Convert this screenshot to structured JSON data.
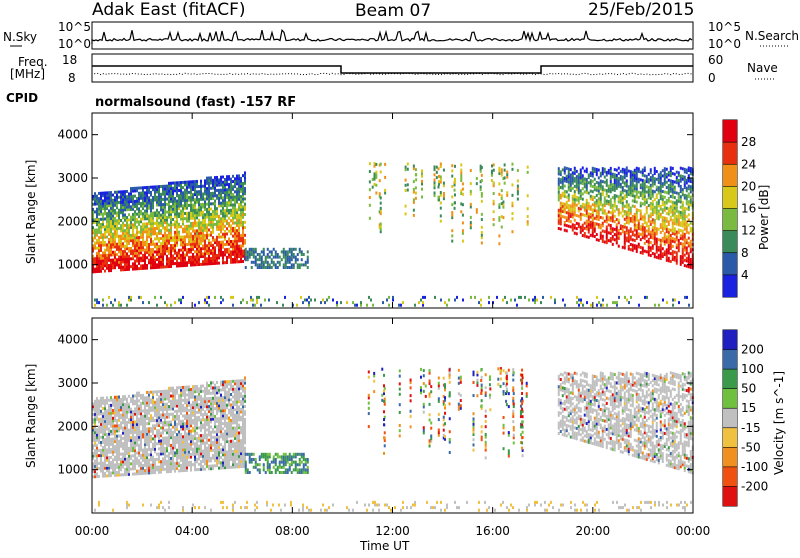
{
  "header": {
    "title": "Adak East (fitACF)",
    "beam": "Beam 07",
    "date": "25/Feb/2015"
  },
  "sky_panel": {
    "left_label": "N.Sky",
    "right_label": "N.Search",
    "left_ticks": [
      "10^5",
      "10^0"
    ],
    "right_ticks": [
      "10^5",
      "10^0"
    ]
  },
  "freq_panel": {
    "left_label_top": "Freq.",
    "left_label_bottom": "[MHz]",
    "left_ticks": [
      "18",
      "8"
    ],
    "right_label": "Nave",
    "right_ticks": [
      "60",
      "0"
    ]
  },
  "cpid": {
    "label": "CPID",
    "text": "normalsound (fast) -157 RF"
  },
  "chart_data": [
    {
      "type": "heatmap",
      "name": "power",
      "ylabel": "Slant Range [km]",
      "yticks": [
        1000,
        2000,
        3000,
        4000
      ],
      "colorbar_label": "Power [dB]",
      "colorbar_ticks": [
        4,
        8,
        12,
        16,
        20,
        24,
        28
      ],
      "colorbar_colors": [
        "#1a22e0",
        "#2a5aa8",
        "#3a8a5a",
        "#7aba40",
        "#d8c81a",
        "#f09018",
        "#e83010",
        "#e00010"
      ]
    },
    {
      "type": "heatmap",
      "name": "velocity",
      "ylabel": "Slant Range [km]",
      "yticks": [
        1000,
        2000,
        3000,
        4000
      ],
      "colorbar_label": "Velocity [m s^-1]",
      "colorbar_ticks": [
        -200,
        -100,
        -50,
        -15,
        15,
        50,
        100,
        200
      ],
      "colorbar_colors": [
        "#e01010",
        "#f05010",
        "#f09020",
        "#f0c040",
        "#c0c0c0",
        "#70c040",
        "#3a9a4a",
        "#3a6aa8",
        "#2020c0"
      ]
    }
  ],
  "xaxis": {
    "label": "Time UT",
    "ticks": [
      "00:00",
      "04:00",
      "08:00",
      "12:00",
      "16:00",
      "20:00",
      "00:00"
    ]
  }
}
